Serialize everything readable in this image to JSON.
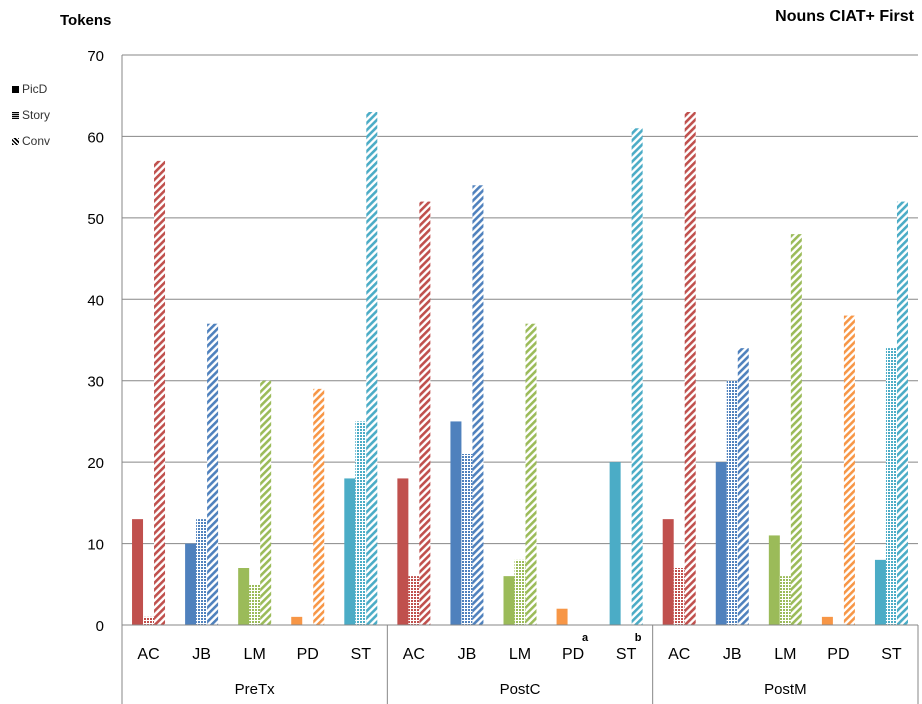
{
  "chart_data": {
    "type": "bar",
    "title": "Nouns CIAT+ First",
    "ylabel": "Tokens",
    "ylim": [
      0,
      70
    ],
    "yticks": [
      0,
      10,
      20,
      30,
      40,
      50,
      60,
      70
    ],
    "legend_position": "top-left",
    "series": [
      {
        "name": "PicD",
        "pattern": "solid"
      },
      {
        "name": "Story",
        "pattern": "dotted"
      },
      {
        "name": "Conv",
        "pattern": "diagonal"
      }
    ],
    "groups": [
      {
        "label": "PreTx",
        "speakers": [
          {
            "label": "AC",
            "values": [
              13,
              1,
              57
            ]
          },
          {
            "label": "JB",
            "values": [
              10,
              13,
              37
            ]
          },
          {
            "label": "LM",
            "values": [
              7,
              5,
              30
            ]
          },
          {
            "label": "PD",
            "values": [
              1,
              0,
              29
            ]
          },
          {
            "label": "ST",
            "values": [
              18,
              25,
              63
            ]
          }
        ]
      },
      {
        "label": "PostC",
        "speakers": [
          {
            "label": "AC",
            "values": [
              18,
              6,
              52
            ]
          },
          {
            "label": "JB",
            "values": [
              25,
              21,
              54
            ]
          },
          {
            "label": "LM",
            "values": [
              6,
              8,
              37
            ]
          },
          {
            "label": "PD",
            "note": "a",
            "values": [
              2,
              0,
              0
            ]
          },
          {
            "label": "ST",
            "note": "b",
            "values": [
              20,
              0,
              61
            ]
          }
        ]
      },
      {
        "label": "PostM",
        "speakers": [
          {
            "label": "AC",
            "values": [
              13,
              7,
              63
            ]
          },
          {
            "label": "JB",
            "values": [
              20,
              30,
              34
            ]
          },
          {
            "label": "LM",
            "values": [
              11,
              6,
              48
            ]
          },
          {
            "label": "PD",
            "values": [
              1,
              0,
              38
            ]
          },
          {
            "label": "ST",
            "values": [
              8,
              34,
              52
            ]
          }
        ]
      }
    ],
    "speaker_colors": {
      "AC": "#c0504d",
      "JB": "#4f81bd",
      "LM": "#9bbb59",
      "PD": "#f79646",
      "ST": "#4bacc6"
    }
  }
}
